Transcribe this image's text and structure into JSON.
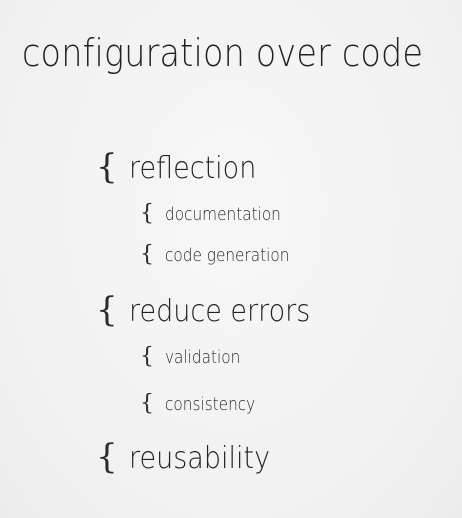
{
  "slide": {
    "title": "configuration over code",
    "items": [
      {
        "label": "reflection",
        "children": [
          {
            "label": "documentation"
          },
          {
            "label": "code generation"
          }
        ]
      },
      {
        "label": "reduce errors",
        "children": [
          {
            "label": "validation"
          },
          {
            "label": "consistency"
          }
        ]
      },
      {
        "label": "reusability",
        "children": []
      }
    ]
  },
  "glyphs": {
    "brace": "{"
  }
}
